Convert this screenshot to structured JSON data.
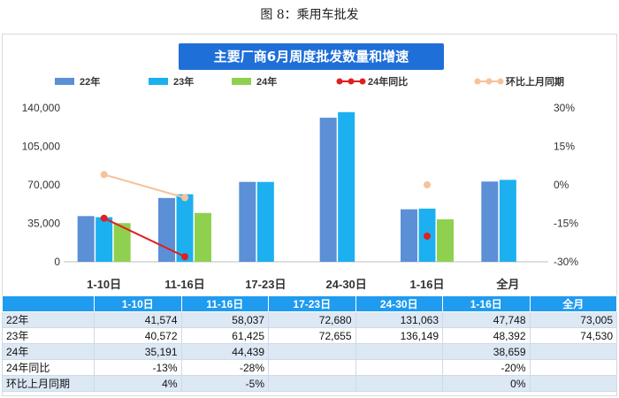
{
  "caption": "图 8：乘用车批发",
  "chart_data": {
    "type": "bar",
    "title": "主要厂商6月周度批发数量和增速",
    "categories": [
      "1-10日",
      "11-16日",
      "17-23日",
      "24-30日",
      "1-16日",
      "全月"
    ],
    "series": [
      {
        "name": "22年",
        "type": "bar",
        "axis": "left",
        "color": "#5b8fd6",
        "values": [
          41574,
          58037,
          72680,
          131063,
          47748,
          73005
        ]
      },
      {
        "name": "23年",
        "type": "bar",
        "axis": "left",
        "color": "#1cb0f0",
        "values": [
          40572,
          61425,
          72655,
          136149,
          48392,
          74530
        ]
      },
      {
        "name": "24年",
        "type": "bar",
        "axis": "left",
        "color": "#8fd14f",
        "values": [
          35191,
          44439,
          null,
          null,
          38659,
          null
        ]
      },
      {
        "name": "24年同比",
        "type": "line",
        "axis": "right",
        "color": "#e02020",
        "values": [
          -13,
          -28,
          null,
          null,
          -20,
          null
        ]
      },
      {
        "name": "环比上月同期",
        "type": "line",
        "axis": "right",
        "color": "#f6c29a",
        "values": [
          4,
          -5,
          null,
          null,
          0,
          null
        ]
      }
    ],
    "ylim": [
      0,
      140000
    ],
    "yticks": [
      "0",
      "35,000",
      "70,000",
      "105,000",
      "140,000"
    ],
    "ytick_values": [
      0,
      35000,
      70000,
      105000,
      140000
    ],
    "y2lim": [
      -30,
      30
    ],
    "y2ticks": [
      "-30%",
      "-15%",
      "0%",
      "15%",
      "30%"
    ],
    "y2tick_values": [
      -30,
      -15,
      0,
      15,
      30
    ],
    "legend_position": "top",
    "grid": false
  },
  "table": {
    "header": [
      "",
      "1-10日",
      "11-16日",
      "17-23日",
      "24-30日",
      "1-16日",
      "全月"
    ],
    "rows": [
      {
        "label": "22年",
        "cells": [
          "41,574",
          "58,037",
          "72,680",
          "131,063",
          "47,748",
          "73,005"
        ]
      },
      {
        "label": "23年",
        "cells": [
          "40,572",
          "61,425",
          "72,655",
          "136,149",
          "48,392",
          "74,530"
        ]
      },
      {
        "label": "24年",
        "cells": [
          "35,191",
          "44,439",
          "",
          "",
          "38,659",
          ""
        ]
      },
      {
        "label": "24年同比",
        "cells": [
          "-13%",
          "-28%",
          "",
          "",
          "-20%",
          ""
        ]
      },
      {
        "label": "环比上月同期",
        "cells": [
          "4%",
          "-5%",
          "",
          "",
          "0%",
          ""
        ]
      }
    ]
  }
}
